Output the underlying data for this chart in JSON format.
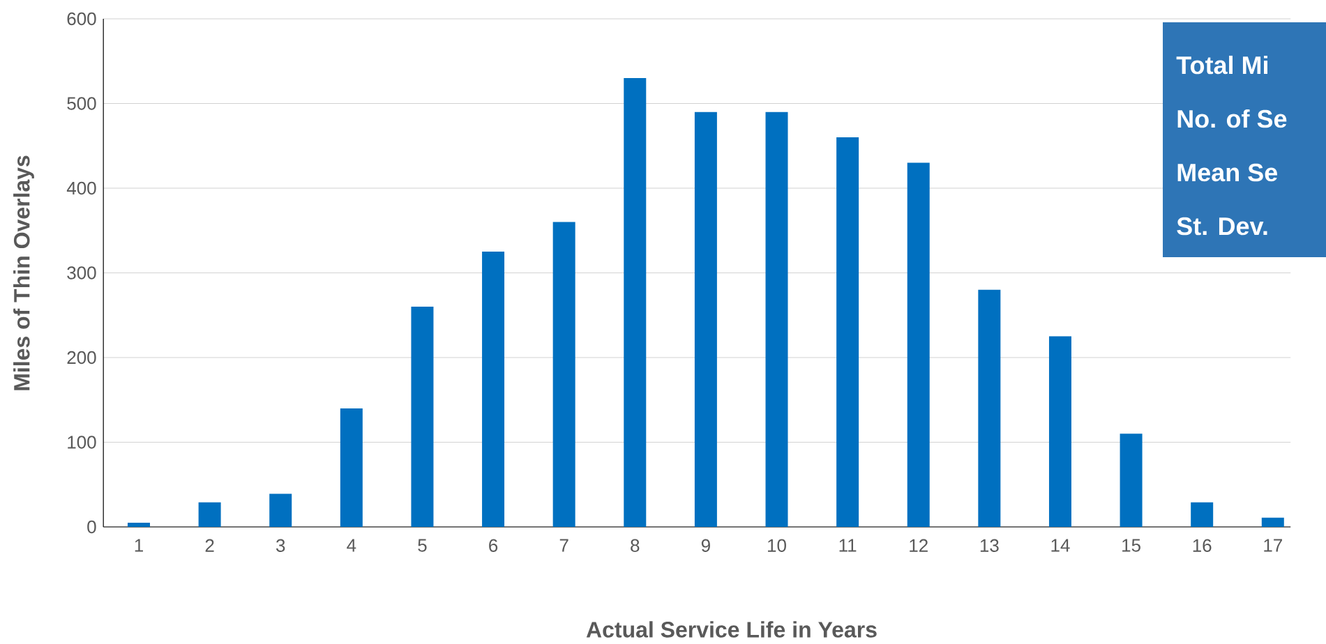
{
  "chart_data": {
    "type": "bar",
    "xlabel": "Actual Service Life in Years",
    "ylabel": "Miles of Thin Overlays",
    "categories": [
      "1",
      "2",
      "3",
      "4",
      "5",
      "6",
      "7",
      "8",
      "9",
      "10",
      "11",
      "12",
      "13",
      "14",
      "15",
      "16",
      "17"
    ],
    "values": [
      5,
      29,
      39,
      140,
      260,
      325,
      360,
      530,
      490,
      490,
      460,
      430,
      280,
      225,
      110,
      29,
      11
    ],
    "color": "#0070c0",
    "ylim": [
      0,
      600
    ],
    "yticks": [
      0,
      100,
      200,
      300,
      400,
      500,
      600
    ],
    "grid": "y",
    "annotations": [
      "Total Mi",
      "No. of Se",
      "Mean Se",
      "St. Dev."
    ]
  }
}
